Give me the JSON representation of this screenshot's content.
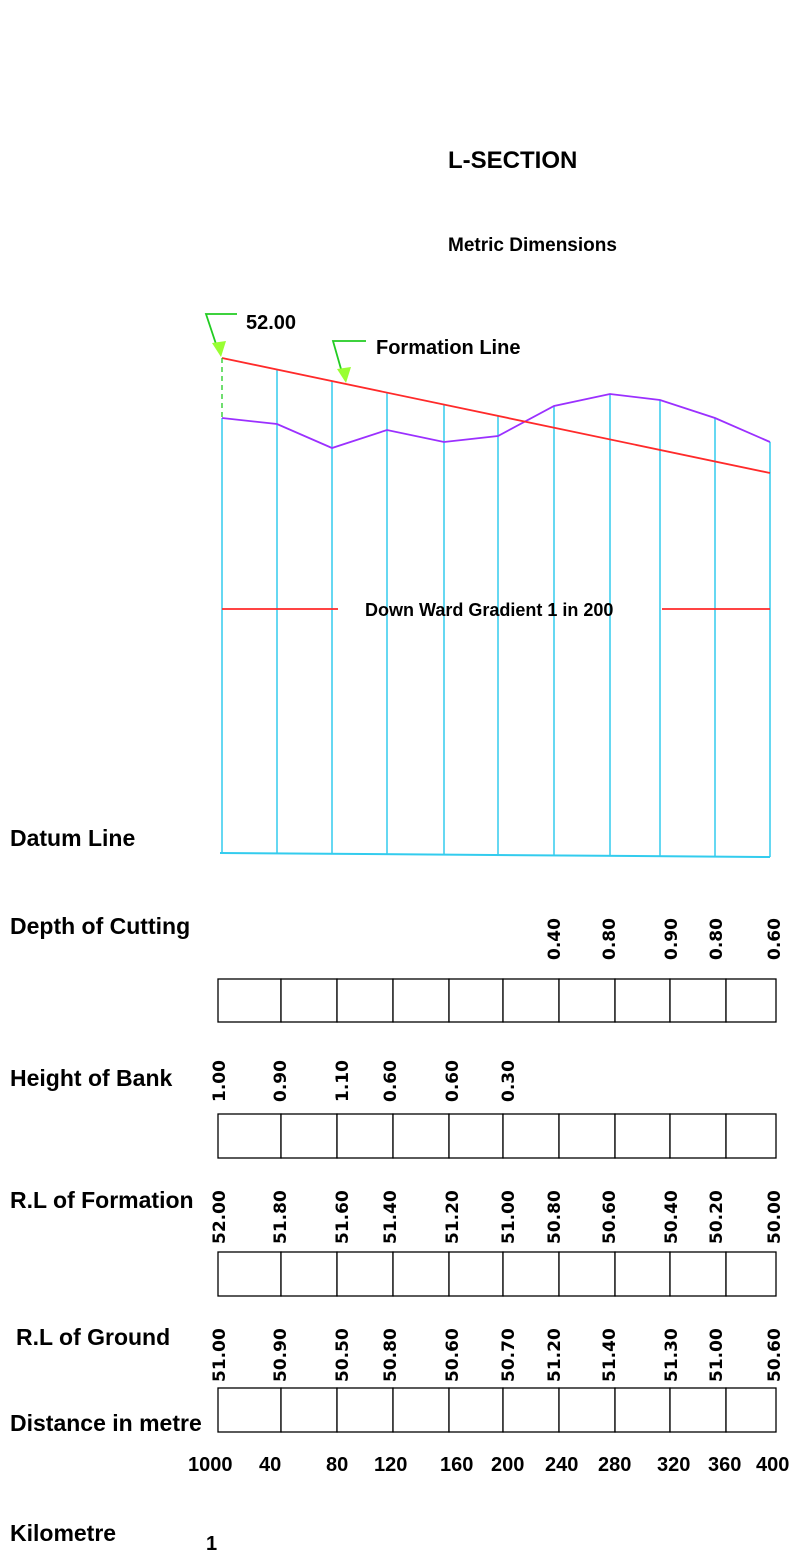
{
  "title": "L-SECTION",
  "subtitle": "Metric Dimensions",
  "annotations": {
    "start_level": "52.00",
    "formation_line": "Formation Line",
    "gradient": "Down Ward Gradient 1 in 200"
  },
  "row_labels": {
    "datum": "Datum Line",
    "depth": "Depth of Cutting",
    "bank": "Height of Bank",
    "formation": "R.L of Formation",
    "ground": "R.L of Ground",
    "distance": "Distance in metre",
    "kilometre": "Kilometre"
  },
  "kilometre_value": "1",
  "colors": {
    "formation": "#ff2a2a",
    "ground": "#9b30ff",
    "ordinate": "#33ccee",
    "leader": "#22cc22",
    "arrow": "#99ff33"
  },
  "chart_data": {
    "type": "line",
    "title": "L-SECTION",
    "subtitle": "Metric Dimensions",
    "distance": [
      "1000",
      "40",
      "80",
      "120",
      "160",
      "200",
      "240",
      "280",
      "320",
      "360",
      "400"
    ],
    "rl_ground": [
      "51.00",
      "50.90",
      "50.50",
      "50.80",
      "50.60",
      "50.70",
      "51.20",
      "51.40",
      "51.30",
      "51.00",
      "50.60"
    ],
    "rl_formation": [
      "52.00",
      "51.80",
      "51.60",
      "51.40",
      "51.20",
      "51.00",
      "50.80",
      "50.60",
      "50.40",
      "50.20",
      "50.00"
    ],
    "height_of_bank": [
      "1.00",
      "0.90",
      "1.10",
      "0.60",
      "0.60",
      "0.30",
      "",
      "",
      "",
      "",
      ""
    ],
    "depth_of_cutting": [
      "",
      "",
      "",
      "",
      "",
      "",
      "0.40",
      "0.80",
      "0.90",
      "0.80",
      "0.60"
    ],
    "series": [
      {
        "name": "Formation Line",
        "values": [
          52.0,
          51.8,
          51.6,
          51.4,
          51.2,
          51.0,
          50.8,
          50.6,
          50.4,
          50.2,
          50.0
        ]
      },
      {
        "name": "",
        "values": [
          51.0,
          50.9,
          50.5,
          50.8,
          50.6,
          50.7,
          51.2,
          51.4,
          51.3,
          51.0,
          50.6
        ]
      }
    ]
  }
}
